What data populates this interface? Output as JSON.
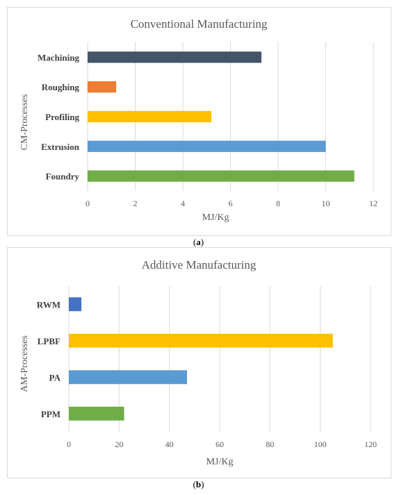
{
  "chart_data": [
    {
      "type": "bar",
      "orientation": "horizontal",
      "title": "Conventional Manufacturing",
      "ylabel": "CM-Processes",
      "xlabel": "MJ/Kg",
      "categories": [
        "Machining",
        "Roughing",
        "Profiling",
        "Extrusion",
        "Foundry"
      ],
      "values": [
        7.3,
        1.2,
        5.2,
        10.0,
        11.2
      ],
      "colors": [
        "#44546a",
        "#ed7d31",
        "#ffc000",
        "#5b9bd5",
        "#70ad47"
      ],
      "xlim": [
        0,
        12
      ],
      "xticks": [
        0,
        2,
        4,
        6,
        8,
        10,
        12
      ],
      "grid": true,
      "caption": "(a)"
    },
    {
      "type": "bar",
      "orientation": "horizontal",
      "title": "Additive Manufacturing",
      "ylabel": "AM-Processes",
      "xlabel": "MJ/Kg",
      "categories": [
        "RWM",
        "LPBF",
        "PA",
        "PPM"
      ],
      "values": [
        5,
        105,
        47,
        22
      ],
      "colors": [
        "#4472c4",
        "#ffc000",
        "#5b9bd5",
        "#70ad47"
      ],
      "xlim": [
        0,
        120
      ],
      "xticks": [
        0,
        20,
        40,
        60,
        80,
        100,
        120
      ],
      "grid": true,
      "caption": "(b)"
    }
  ]
}
